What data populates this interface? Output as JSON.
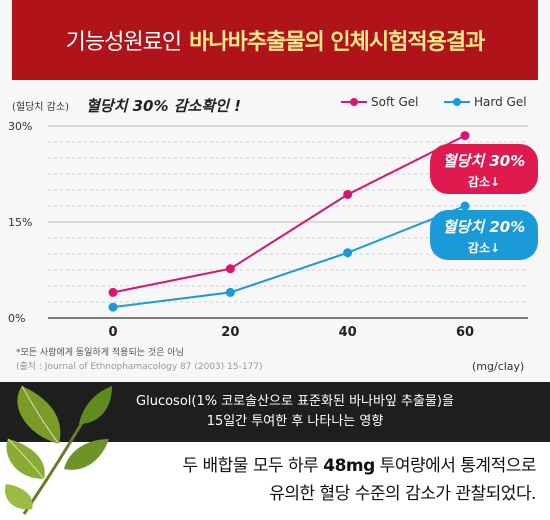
{
  "banner": {
    "lead": "기능성원료인",
    "highlight": "바나바추출물의 인체시험적용결과"
  },
  "chart_data": {
    "type": "line",
    "title": "혈당치 30% 감소확인 !",
    "ylabel": "(혈당치 감소)",
    "xlabel": "(mg/clay)",
    "x": [
      0,
      20,
      40,
      60
    ],
    "x_ticks": [
      "0",
      "20",
      "40",
      "60"
    ],
    "ylim": [
      0,
      30
    ],
    "y_ticks": [
      "0%",
      "15%",
      "30%"
    ],
    "grid": true,
    "legend_position": "top-right",
    "series": [
      {
        "name": "Soft Gel",
        "color": "#d6176f",
        "values": [
          4,
          7.7,
          19.3,
          28.5
        ]
      },
      {
        "name": "Hard Gel",
        "color": "#1a9bd8",
        "values": [
          1.7,
          4,
          10.2,
          17.5
        ]
      }
    ],
    "annotations": [
      {
        "series": 0,
        "line1": "혈당치 30%",
        "line2": "감소↓",
        "color": "#e01a4f"
      },
      {
        "series": 1,
        "line1": "혈당치 20%",
        "line2": "감소↓",
        "color": "#1a9bd8"
      }
    ]
  },
  "footnote": {
    "line1": "*모든 사람에게 동일하게 적용되는 것은 아님",
    "line2": "(출처 : Journal of Ethnophamacology 87 (2003) 15-177)"
  },
  "info_bar": {
    "line1": "Glucosol(1% 코로솔산으로 표준화된 바나바잎 추출물)을",
    "line2": "15일간 투여한 후 나타나는 영향"
  },
  "bottom": {
    "line1_a": "두 배합물 모두 하루 ",
    "line1_b": "48mg",
    "line1_c": " 투여량에서 통계적으로",
    "line2": "유의한 혈당 수준의 감소가 관찰되었다."
  },
  "colors": {
    "banner_bg": "#b01319",
    "highlight": "#ffe98a"
  },
  "icons": {
    "leaf": "leaf-icon"
  }
}
